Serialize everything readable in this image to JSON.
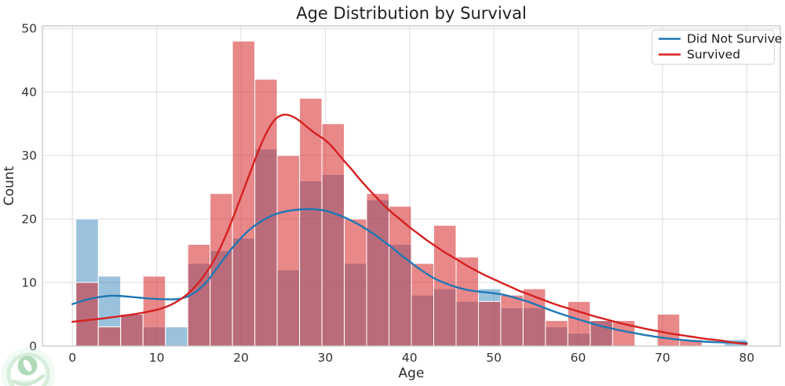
{
  "chart_data": {
    "type": "bar",
    "subtype": "overlaid-histogram-with-kde",
    "title": "Age Distribution by Survival",
    "xlabel": "Age",
    "ylabel": "Count",
    "x_ticks": [
      0,
      10,
      20,
      30,
      40,
      50,
      60,
      70,
      80
    ],
    "y_ticks": [
      0,
      10,
      20,
      30,
      40,
      50
    ],
    "xlim": [
      -3.56,
      83.98
    ],
    "ylim": [
      0,
      50.4
    ],
    "grid": true,
    "legend_position": "upper right",
    "bins": {
      "start": 0.42,
      "width": 2.6527,
      "count": 30
    },
    "series": [
      {
        "name": "Did Not Survive",
        "role": "histogram",
        "fill": "rgba(31,119,180,0.45)",
        "values": [
          20,
          11,
          5,
          3,
          3,
          13,
          15,
          17,
          31,
          12,
          26,
          27,
          13,
          23,
          16,
          8,
          9,
          7,
          9,
          6,
          6,
          3,
          2,
          4,
          0,
          0,
          0,
          0,
          0,
          1
        ]
      },
      {
        "name": "Survived",
        "role": "histogram",
        "fill": "rgba(214,39,40,0.55)",
        "values": [
          10,
          3,
          5,
          11,
          0,
          16,
          24,
          48,
          42,
          30,
          39,
          35,
          20,
          24,
          22,
          13,
          19,
          14,
          7,
          8,
          9,
          4,
          7,
          4,
          4,
          0,
          5,
          1,
          0,
          0
        ]
      },
      {
        "name": "Did Not Survive",
        "role": "kde-line",
        "color": "#1f77b4",
        "points": [
          [
            0,
            6.6
          ],
          [
            2,
            7.4
          ],
          [
            4,
            7.85
          ],
          [
            5,
            7.9
          ],
          [
            6,
            7.85
          ],
          [
            8,
            7.6
          ],
          [
            10,
            7.4
          ],
          [
            12,
            7.35
          ],
          [
            13,
            7.5
          ],
          [
            14,
            8.0
          ],
          [
            15,
            8.9
          ],
          [
            16,
            10.2
          ],
          [
            17,
            12.0
          ],
          [
            18,
            13.8
          ],
          [
            19,
            15.5
          ],
          [
            20,
            17.0
          ],
          [
            21,
            18.3
          ],
          [
            22,
            19.3
          ],
          [
            23,
            20.1
          ],
          [
            24,
            20.7
          ],
          [
            25,
            21.1
          ],
          [
            26,
            21.35
          ],
          [
            27,
            21.5
          ],
          [
            28,
            21.55
          ],
          [
            29,
            21.5
          ],
          [
            30,
            21.3
          ],
          [
            31,
            20.9
          ],
          [
            32,
            20.4
          ],
          [
            33,
            19.8
          ],
          [
            34,
            19.1
          ],
          [
            35,
            18.3
          ],
          [
            36,
            17.4
          ],
          [
            37,
            16.4
          ],
          [
            38,
            15.4
          ],
          [
            39,
            14.3
          ],
          [
            40,
            13.3
          ],
          [
            41,
            12.3
          ],
          [
            42,
            11.4
          ],
          [
            43,
            10.6
          ],
          [
            44,
            10.0
          ],
          [
            45,
            9.5
          ],
          [
            46,
            9.1
          ],
          [
            47,
            8.8
          ],
          [
            48,
            8.6
          ],
          [
            49,
            8.45
          ],
          [
            50,
            8.3
          ],
          [
            51,
            8.1
          ],
          [
            52,
            7.8
          ],
          [
            53,
            7.4
          ],
          [
            54,
            7.0
          ],
          [
            55,
            6.5
          ],
          [
            56,
            6.0
          ],
          [
            57,
            5.5
          ],
          [
            58,
            5.05
          ],
          [
            59,
            4.6
          ],
          [
            60,
            4.2
          ],
          [
            61,
            3.8
          ],
          [
            62,
            3.4
          ],
          [
            63,
            3.05
          ],
          [
            64,
            2.75
          ],
          [
            65,
            2.45
          ],
          [
            66,
            2.2
          ],
          [
            67,
            1.95
          ],
          [
            68,
            1.7
          ],
          [
            69,
            1.5
          ],
          [
            70,
            1.3
          ],
          [
            71,
            1.15
          ],
          [
            72,
            1.0
          ],
          [
            73,
            0.87
          ],
          [
            74,
            0.76
          ],
          [
            75,
            0.68
          ],
          [
            76,
            0.62
          ],
          [
            77,
            0.57
          ],
          [
            78,
            0.54
          ],
          [
            79,
            0.52
          ],
          [
            80,
            0.5
          ]
        ]
      },
      {
        "name": "Survived",
        "role": "kde-line",
        "color": "#d62020",
        "points": [
          [
            0,
            3.8
          ],
          [
            2,
            4.1
          ],
          [
            4,
            4.4
          ],
          [
            6,
            4.75
          ],
          [
            8,
            5.15
          ],
          [
            10,
            5.7
          ],
          [
            11,
            6.1
          ],
          [
            12,
            6.7
          ],
          [
            13,
            7.5
          ],
          [
            14,
            8.6
          ],
          [
            15,
            10.0
          ],
          [
            16,
            11.8
          ],
          [
            17,
            14.0
          ],
          [
            18,
            16.8
          ],
          [
            19,
            20.0
          ],
          [
            20,
            23.5
          ],
          [
            21,
            27.0
          ],
          [
            22,
            30.5
          ],
          [
            23,
            33.5
          ],
          [
            24,
            35.6
          ],
          [
            25,
            36.4
          ],
          [
            26,
            36.2
          ],
          [
            27,
            35.4
          ],
          [
            28,
            34.3
          ],
          [
            29,
            33.3
          ],
          [
            30,
            32.4
          ],
          [
            31,
            31.1
          ],
          [
            32,
            29.5
          ],
          [
            33,
            28.0
          ],
          [
            34,
            26.4
          ],
          [
            35,
            24.9
          ],
          [
            36,
            23.5
          ],
          [
            37,
            22.1
          ],
          [
            38,
            20.9
          ],
          [
            39,
            19.8
          ],
          [
            40,
            18.7
          ],
          [
            41,
            17.7
          ],
          [
            42,
            16.7
          ],
          [
            43,
            15.8
          ],
          [
            44,
            14.9
          ],
          [
            45,
            14.1
          ],
          [
            46,
            13.3
          ],
          [
            47,
            12.5
          ],
          [
            48,
            11.8
          ],
          [
            49,
            11.1
          ],
          [
            50,
            10.5
          ],
          [
            51,
            9.9
          ],
          [
            52,
            9.3
          ],
          [
            53,
            8.7
          ],
          [
            54,
            8.2
          ],
          [
            55,
            7.7
          ],
          [
            56,
            7.2
          ],
          [
            57,
            6.7
          ],
          [
            58,
            6.25
          ],
          [
            59,
            5.85
          ],
          [
            60,
            5.45
          ],
          [
            61,
            5.05
          ],
          [
            62,
            4.65
          ],
          [
            63,
            4.3
          ],
          [
            64,
            3.95
          ],
          [
            65,
            3.6
          ],
          [
            66,
            3.3
          ],
          [
            67,
            3.0
          ],
          [
            68,
            2.7
          ],
          [
            69,
            2.45
          ],
          [
            70,
            2.2
          ],
          [
            71,
            1.95
          ],
          [
            72,
            1.75
          ],
          [
            73,
            1.55
          ],
          [
            74,
            1.35
          ],
          [
            75,
            1.15
          ],
          [
            76,
            1.0
          ],
          [
            77,
            0.85
          ],
          [
            78,
            0.6
          ],
          [
            79,
            0.45
          ],
          [
            80,
            0.3
          ]
        ]
      }
    ],
    "legend": {
      "entries": [
        {
          "label": "Did Not Survive",
          "color": "#1f77b4"
        },
        {
          "label": "Survived",
          "color": "#d62020"
        }
      ]
    },
    "colors": {
      "grid": "#dcdcdc",
      "spine": "#c6c6c6",
      "plot_background": "#ffffff",
      "bar_edge": "#ffffff"
    }
  },
  "watermark": {
    "description": "faint green circular leaf logo, bottom-left corner",
    "ring_color": "#bde3c6",
    "badge_color": "#7cc48d",
    "accent_color": "#a6d8b0"
  }
}
